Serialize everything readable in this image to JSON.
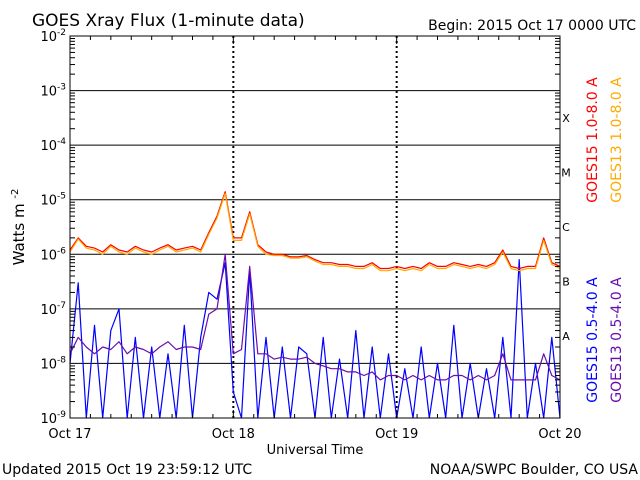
{
  "chart_data": {
    "type": "line",
    "title": "GOES Xray Flux (1-minute data)",
    "begin_text": "Begin:  2015 Oct 17 0000 UTC",
    "xlabel": "Universal Time",
    "ylabel": "Watts m",
    "ylabel_sup": "-2",
    "yscale": "log",
    "ylim": [
      1e-09,
      0.01
    ],
    "xlim_days": [
      0,
      3
    ],
    "x_tick_labels": [
      "Oct 17",
      "Oct 18",
      "Oct 19",
      "Oct 20"
    ],
    "y_tick_labels": [
      {
        "base": "10",
        "exp": "-9"
      },
      {
        "base": "10",
        "exp": "-8"
      },
      {
        "base": "10",
        "exp": "-7"
      },
      {
        "base": "10",
        "exp": "-6"
      },
      {
        "base": "10",
        "exp": "-5"
      },
      {
        "base": "10",
        "exp": "-4"
      },
      {
        "base": "10",
        "exp": "-3"
      },
      {
        "base": "10",
        "exp": "-2"
      }
    ],
    "flare_classes": [
      {
        "label": "A",
        "exp": -8
      },
      {
        "label": "B",
        "exp": -7
      },
      {
        "label": "C",
        "exp": -6
      },
      {
        "label": "M",
        "exp": -5
      },
      {
        "label": "X",
        "exp": -4
      }
    ],
    "series": [
      {
        "name": "GOES15 1.0-8.0 A",
        "color": "#ff0000",
        "x_days": [
          0.0,
          0.05,
          0.1,
          0.15,
          0.2,
          0.25,
          0.3,
          0.35,
          0.4,
          0.45,
          0.5,
          0.55,
          0.6,
          0.65,
          0.7,
          0.75,
          0.8,
          0.85,
          0.9,
          0.95,
          1.0,
          1.05,
          1.1,
          1.15,
          1.2,
          1.25,
          1.3,
          1.35,
          1.4,
          1.45,
          1.5,
          1.55,
          1.6,
          1.65,
          1.7,
          1.75,
          1.8,
          1.85,
          1.9,
          1.95,
          2.0,
          2.05,
          2.1,
          2.15,
          2.2,
          2.25,
          2.3,
          2.35,
          2.4,
          2.45,
          2.5,
          2.55,
          2.6,
          2.65,
          2.7,
          2.75,
          2.8,
          2.85,
          2.9,
          2.95,
          3.0
        ],
        "values": [
          1.2e-06,
          2e-06,
          1.4e-06,
          1.3e-06,
          1.1e-06,
          1.5e-06,
          1.2e-06,
          1.1e-06,
          1.4e-06,
          1.2e-06,
          1.1e-06,
          1.3e-06,
          1.5e-06,
          1.2e-06,
          1.3e-06,
          1.4e-06,
          1.2e-06,
          2.5e-06,
          5e-06,
          1.4e-05,
          2e-06,
          2e-06,
          6e-06,
          1.5e-06,
          1.1e-06,
          1e-06,
          1e-06,
          9e-07,
          9e-07,
          9.5e-07,
          8e-07,
          7e-07,
          7e-07,
          6.5e-07,
          6.5e-07,
          6e-07,
          6e-07,
          7e-07,
          5.5e-07,
          5.5e-07,
          6e-07,
          5.5e-07,
          6e-07,
          5.5e-07,
          7e-07,
          6e-07,
          6e-07,
          7e-07,
          6.5e-07,
          6e-07,
          6.5e-07,
          6e-07,
          7e-07,
          1.2e-06,
          6e-07,
          5.5e-07,
          6e-07,
          6e-07,
          2e-06,
          7e-07,
          6e-07
        ]
      },
      {
        "name": "GOES13 1.0-8.0 A",
        "color": "#ffaa00",
        "x_days": [
          0.0,
          0.05,
          0.1,
          0.15,
          0.2,
          0.25,
          0.3,
          0.35,
          0.4,
          0.45,
          0.5,
          0.55,
          0.6,
          0.65,
          0.7,
          0.75,
          0.8,
          0.85,
          0.9,
          0.95,
          1.0,
          1.05,
          1.1,
          1.15,
          1.2,
          1.25,
          1.3,
          1.35,
          1.4,
          1.45,
          1.5,
          1.55,
          1.6,
          1.65,
          1.7,
          1.75,
          1.8,
          1.85,
          1.9,
          1.95,
          2.0,
          2.05,
          2.1,
          2.15,
          2.2,
          2.25,
          2.3,
          2.35,
          2.4,
          2.45,
          2.5,
          2.55,
          2.6,
          2.65,
          2.7,
          2.75,
          2.8,
          2.85,
          2.9,
          2.95,
          3.0
        ],
        "values": [
          1.1e-06,
          1.9e-06,
          1.3e-06,
          1.2e-06,
          1e-06,
          1.4e-06,
          1.1e-06,
          1e-06,
          1.3e-06,
          1.1e-06,
          1e-06,
          1.2e-06,
          1.4e-06,
          1.1e-06,
          1.2e-06,
          1.3e-06,
          1.1e-06,
          2.3e-06,
          4.6e-06,
          1.3e-05,
          1.8e-06,
          1.8e-06,
          5.5e-06,
          1.4e-06,
          1e-06,
          9.5e-07,
          9.5e-07,
          8.5e-07,
          8.5e-07,
          9e-07,
          7.5e-07,
          6.5e-07,
          6.5e-07,
          6e-07,
          6e-07,
          5.5e-07,
          5.5e-07,
          6.5e-07,
          5e-07,
          5e-07,
          5.5e-07,
          5e-07,
          5.5e-07,
          5e-07,
          6.5e-07,
          5.5e-07,
          5.5e-07,
          6.5e-07,
          6e-07,
          5.5e-07,
          6e-07,
          5.5e-07,
          6.5e-07,
          1.1e-06,
          5.5e-07,
          5e-07,
          5.5e-07,
          5.5e-07,
          1.8e-06,
          6.5e-07,
          5.5e-07
        ]
      },
      {
        "name": "GOES15 0.5-4.0 A",
        "color": "#0000ff",
        "x_days": [
          0.0,
          0.05,
          0.1,
          0.15,
          0.2,
          0.25,
          0.3,
          0.35,
          0.4,
          0.45,
          0.5,
          0.55,
          0.6,
          0.65,
          0.7,
          0.75,
          0.8,
          0.85,
          0.9,
          0.95,
          1.0,
          1.05,
          1.1,
          1.15,
          1.2,
          1.25,
          1.3,
          1.35,
          1.4,
          1.45,
          1.5,
          1.55,
          1.6,
          1.65,
          1.7,
          1.75,
          1.8,
          1.85,
          1.9,
          1.95,
          2.0,
          2.05,
          2.1,
          2.15,
          2.2,
          2.25,
          2.3,
          2.35,
          2.4,
          2.45,
          2.5,
          2.55,
          2.6,
          2.65,
          2.7,
          2.75,
          2.8,
          2.85,
          2.9,
          2.95,
          3.0
        ],
        "values": [
          1e-08,
          3e-07,
          1e-09,
          5e-08,
          1e-09,
          4e-08,
          1e-07,
          1e-09,
          3e-08,
          1e-09,
          2e-08,
          1e-09,
          1.5e-08,
          1e-09,
          5e-08,
          1e-09,
          3e-08,
          2e-07,
          1.5e-07,
          7e-07,
          3e-09,
          1e-09,
          5e-07,
          1e-09,
          3e-08,
          1e-09,
          2e-08,
          1e-09,
          2e-08,
          1.5e-08,
          1e-09,
          3e-08,
          1e-09,
          1.2e-08,
          1e-09,
          4e-08,
          1e-09,
          2e-08,
          1e-09,
          1.5e-08,
          1e-09,
          8e-09,
          1e-09,
          2e-08,
          1e-09,
          1e-08,
          1e-09,
          5e-08,
          1e-09,
          1e-08,
          1e-09,
          8e-09,
          1e-09,
          3e-08,
          1e-09,
          8e-07,
          1e-09,
          1e-08,
          1e-09,
          3e-08,
          1e-09
        ]
      },
      {
        "name": "GOES13 0.5-4.0 A",
        "color": "#6a0dad",
        "x_days": [
          0.0,
          0.05,
          0.1,
          0.15,
          0.2,
          0.25,
          0.3,
          0.35,
          0.4,
          0.45,
          0.5,
          0.55,
          0.6,
          0.65,
          0.7,
          0.75,
          0.8,
          0.85,
          0.9,
          0.95,
          1.0,
          1.05,
          1.1,
          1.15,
          1.2,
          1.25,
          1.3,
          1.35,
          1.4,
          1.45,
          1.5,
          1.55,
          1.6,
          1.65,
          1.7,
          1.75,
          1.8,
          1.85,
          1.9,
          1.95,
          2.0,
          2.05,
          2.1,
          2.15,
          2.2,
          2.25,
          2.3,
          2.35,
          2.4,
          2.45,
          2.5,
          2.55,
          2.6,
          2.65,
          2.7,
          2.75,
          2.8,
          2.85,
          2.9,
          2.95,
          3.0
        ],
        "values": [
          1.5e-08,
          3e-08,
          2e-08,
          1.5e-08,
          2e-08,
          1.8e-08,
          2.5e-08,
          1.5e-08,
          2e-08,
          1.8e-08,
          1.5e-08,
          2e-08,
          2.5e-08,
          1.8e-08,
          2e-08,
          2e-08,
          1.8e-08,
          8e-08,
          1e-07,
          1e-06,
          1.5e-08,
          1.8e-08,
          6e-07,
          1.5e-08,
          1.5e-08,
          1.2e-08,
          1.3e-08,
          1.2e-08,
          1.2e-08,
          1.3e-08,
          1e-08,
          9e-09,
          8e-09,
          8e-09,
          7e-09,
          7e-09,
          6e-09,
          7e-09,
          5e-09,
          6e-09,
          6e-09,
          5e-09,
          6e-09,
          5e-09,
          6e-09,
          5e-09,
          5e-09,
          6e-09,
          6e-09,
          5e-09,
          6e-09,
          5e-09,
          6e-09,
          1.5e-08,
          5e-09,
          5e-09,
          5e-09,
          5e-09,
          1.5e-08,
          6e-09,
          5e-09
        ]
      }
    ],
    "legend_placement": "right, rotated vertical",
    "grid": "horizontal at each decade; dotted vertical at day boundaries"
  },
  "footer": {
    "updated": "Updated 2015 Oct 19 23:59:12 UTC",
    "credit": "NOAA/SWPC Boulder, CO USA"
  }
}
